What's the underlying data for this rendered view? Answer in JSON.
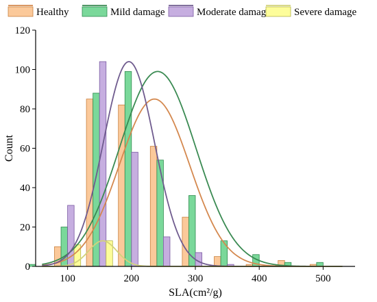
{
  "chart_data": {
    "type": "bar",
    "xlabel": "SLA(cm²/g)",
    "ylabel": "Count",
    "xlim": [
      50,
      550
    ],
    "ylim": [
      0,
      120
    ],
    "xticks": [
      100,
      200,
      300,
      400,
      500
    ],
    "yticks": [
      0,
      20,
      40,
      60,
      80,
      100,
      120
    ],
    "bin_width": 50,
    "grid": false,
    "legend_position": "top",
    "series": [
      {
        "name": "Healthy",
        "fill": "#fbc99a",
        "edge": "#c8803e",
        "curve_color": "#d4884e",
        "bins": [
          {
            "x": 100,
            "count": 10
          },
          {
            "x": 150,
            "count": 85
          },
          {
            "x": 200,
            "count": 82
          },
          {
            "x": 250,
            "count": 61
          },
          {
            "x": 300,
            "count": 25
          },
          {
            "x": 350,
            "count": 5
          },
          {
            "x": 400,
            "count": 1
          },
          {
            "x": 450,
            "count": 3
          },
          {
            "x": 500,
            "count": 1
          }
        ],
        "fit": {
          "mean": 236,
          "sd": 55,
          "peak": 85
        }
      },
      {
        "name": "Mild damage",
        "fill": "#7ad89a",
        "edge": "#2e8a4e",
        "curve_color": "#3a8a52",
        "bins": [
          {
            "x": 50,
            "count": 1
          },
          {
            "x": 100,
            "count": 20
          },
          {
            "x": 150,
            "count": 88
          },
          {
            "x": 200,
            "count": 99
          },
          {
            "x": 250,
            "count": 54
          },
          {
            "x": 300,
            "count": 36
          },
          {
            "x": 350,
            "count": 13
          },
          {
            "x": 400,
            "count": 6
          },
          {
            "x": 450,
            "count": 2
          },
          {
            "x": 500,
            "count": 2
          }
        ],
        "fit": {
          "mean": 241,
          "sd": 60,
          "peak": 99
        }
      },
      {
        "name": "Moderate damage",
        "fill": "#c6aee0",
        "edge": "#7a5aa2",
        "curve_color": "#6f5b8e",
        "bins": [
          {
            "x": 100,
            "count": 31
          },
          {
            "x": 150,
            "count": 104
          },
          {
            "x": 200,
            "count": 58
          },
          {
            "x": 250,
            "count": 15
          },
          {
            "x": 300,
            "count": 7
          },
          {
            "x": 350,
            "count": 1
          }
        ],
        "fit": {
          "mean": 196,
          "sd": 40,
          "peak": 104
        }
      },
      {
        "name": "Severe damage",
        "fill": "#fdfd9a",
        "edge": "#b5b54a",
        "curve_color": "#d2d27a",
        "bins": [
          {
            "x": 100,
            "count": 11
          },
          {
            "x": 150,
            "count": 13
          }
        ],
        "fit": {
          "mean": 155,
          "sd": 22,
          "peak": 13
        }
      }
    ]
  }
}
